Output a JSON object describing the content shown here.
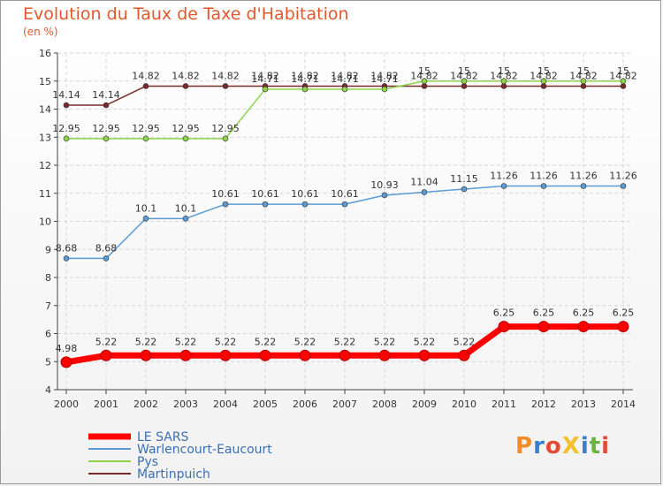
{
  "header": {
    "title": "Evolution du Taux de Taxe d'Habitation",
    "unit": "(en %)"
  },
  "logo": {
    "text": "ProXiti",
    "colors": [
      "#f28c28",
      "#3a7fcf",
      "#e34a34",
      "#f2c12e",
      "#3a7fcf",
      "#6bb33a",
      "#e34a34"
    ]
  },
  "chart_data": {
    "type": "line",
    "title": "Evolution du Taux de Taxe d'Habitation",
    "ylabel": "(en %)",
    "xlabel": "",
    "x": [
      2000,
      2001,
      2002,
      2003,
      2004,
      2005,
      2006,
      2007,
      2008,
      2009,
      2010,
      2011,
      2012,
      2013,
      2014
    ],
    "ylim": [
      4,
      16
    ],
    "yticks": [
      4,
      5,
      6,
      7,
      8,
      9,
      10,
      11,
      12,
      13,
      14,
      15,
      16
    ],
    "grid": true,
    "legend": "bottom-left",
    "series": [
      {
        "name": "LE SARS",
        "color": "#ff0000",
        "values": [
          4.98,
          5.22,
          5.22,
          5.22,
          5.22,
          5.22,
          5.22,
          5.22,
          5.22,
          5.22,
          5.22,
          6.25,
          6.25,
          6.25,
          6.25
        ],
        "labels": [
          "4.98",
          "5.22",
          "5.22",
          "5.22",
          "5.22",
          "5.22",
          "5.22",
          "5.22",
          "5.22",
          "5.22",
          "5.22",
          "6.25",
          "6.25",
          "6.25",
          "6.25"
        ]
      },
      {
        "name": "Warlencourt-Eaucourt",
        "color": "#5b9bd5",
        "values": [
          8.68,
          8.68,
          10.1,
          10.1,
          10.61,
          10.61,
          10.61,
          10.61,
          10.93,
          11.04,
          11.15,
          11.26,
          11.26,
          11.26,
          11.26
        ],
        "labels": [
          "8.68",
          "8.68",
          "10.1",
          "10.1",
          "10.61",
          "10.61",
          "10.61",
          "10.61",
          "10.93",
          "11.04",
          "11.15",
          "11.26",
          "11.26",
          "11.26",
          "11.26"
        ]
      },
      {
        "name": "Pys",
        "color": "#8ed44a",
        "values": [
          12.95,
          12.95,
          12.95,
          12.95,
          12.95,
          14.71,
          14.71,
          14.71,
          14.71,
          15,
          15,
          15,
          15,
          15,
          15
        ],
        "labels": [
          "12.95",
          "12.95",
          "12.95",
          "12.95",
          "12.95",
          "14.71",
          "14.71",
          "14.71",
          "14.71",
          "15",
          "15",
          "15",
          "15",
          "15",
          "15"
        ]
      },
      {
        "name": "Martinpuich",
        "color": "#7a2a2a",
        "values": [
          14.14,
          14.14,
          14.82,
          14.82,
          14.82,
          14.82,
          14.82,
          14.82,
          14.82,
          14.82,
          14.82,
          14.82,
          14.82,
          14.82,
          14.82
        ],
        "labels": [
          "14.14",
          "14.14",
          "14.82",
          "14.82",
          "14.82",
          "14.82",
          "14.82",
          "14.82",
          "14.82",
          "14.82",
          "14.82",
          "14.82",
          "14.82",
          "14.82",
          "14.82"
        ]
      }
    ]
  }
}
